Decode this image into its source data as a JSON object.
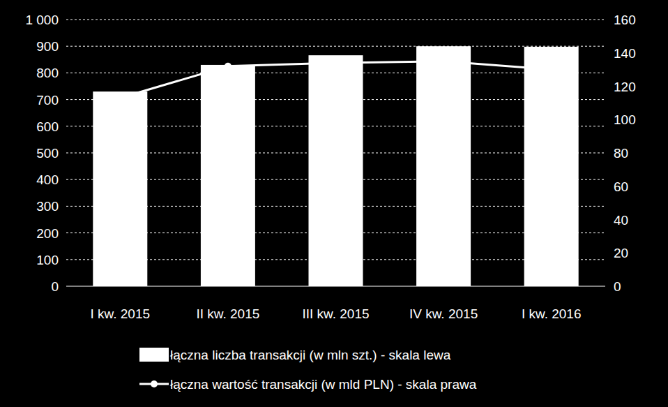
{
  "chart_data": {
    "type": "bar",
    "categories": [
      "I kw. 2015",
      "II kw. 2015",
      "III kw. 2015",
      "IV kw. 2015",
      "I kw. 2016"
    ],
    "series": [
      {
        "name": "łączna liczba transakcji (w mln szt.) - skala lewa",
        "type": "bar",
        "color": "#ffffff",
        "values": [
          730,
          830,
          866,
          900,
          898
        ]
      },
      {
        "name": "łączna wartość transakcji (w mld PLN) - skala prawa",
        "type": "line",
        "color": "#ffffff",
        "marker": "circle",
        "axis": "y2",
        "values": [
          113,
          132,
          134,
          135,
          130
        ]
      }
    ],
    "ylim": [
      0,
      1000
    ],
    "yticks": [
      0,
      100,
      200,
      300,
      400,
      500,
      600,
      700,
      800,
      900,
      {
        "value": 1000,
        "label": "1 000"
      }
    ],
    "y2lim": [
      0,
      160
    ],
    "y2ticks": [
      0,
      20,
      40,
      60,
      80,
      100,
      120,
      140,
      160
    ],
    "grid": true,
    "legend": "bottom"
  }
}
